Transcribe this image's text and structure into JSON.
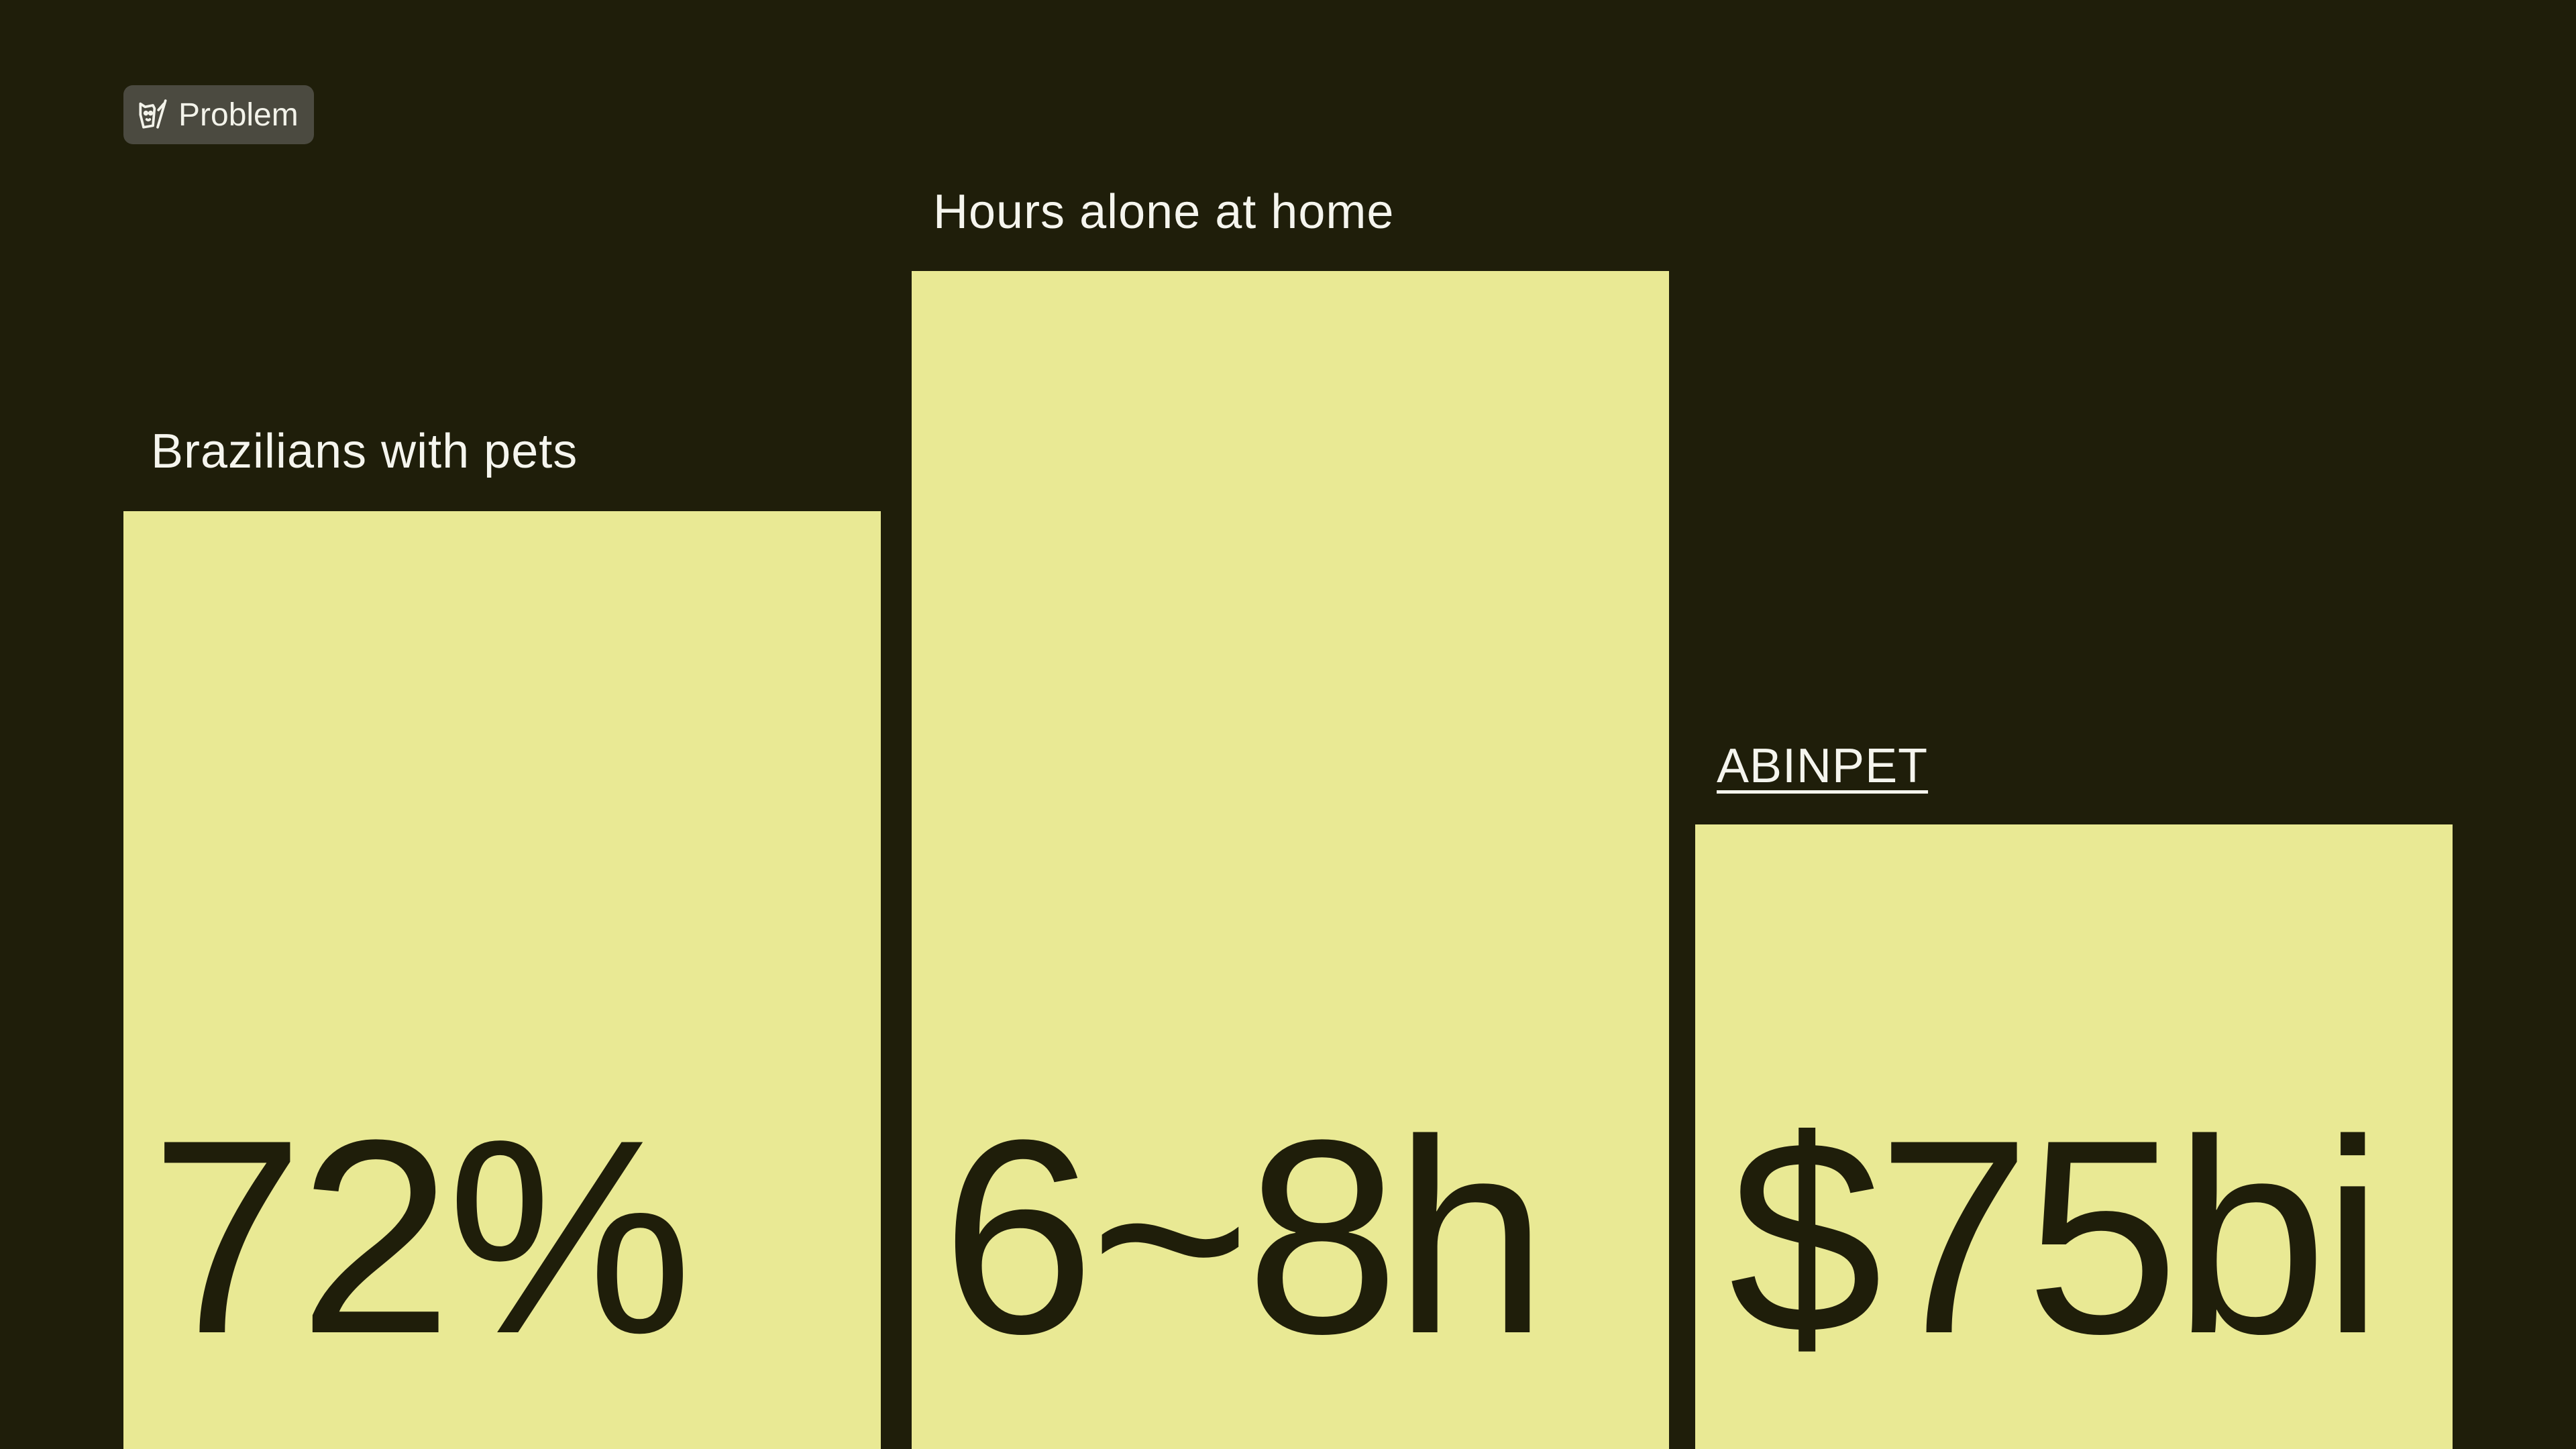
{
  "badge": {
    "label": "Problem"
  },
  "cards": [
    {
      "label": "Brazilians with pets",
      "value": "72%"
    },
    {
      "label": "Hours alone at home",
      "value": "6~8h"
    },
    {
      "label": "ABINPET",
      "value": "$75bi"
    }
  ]
}
